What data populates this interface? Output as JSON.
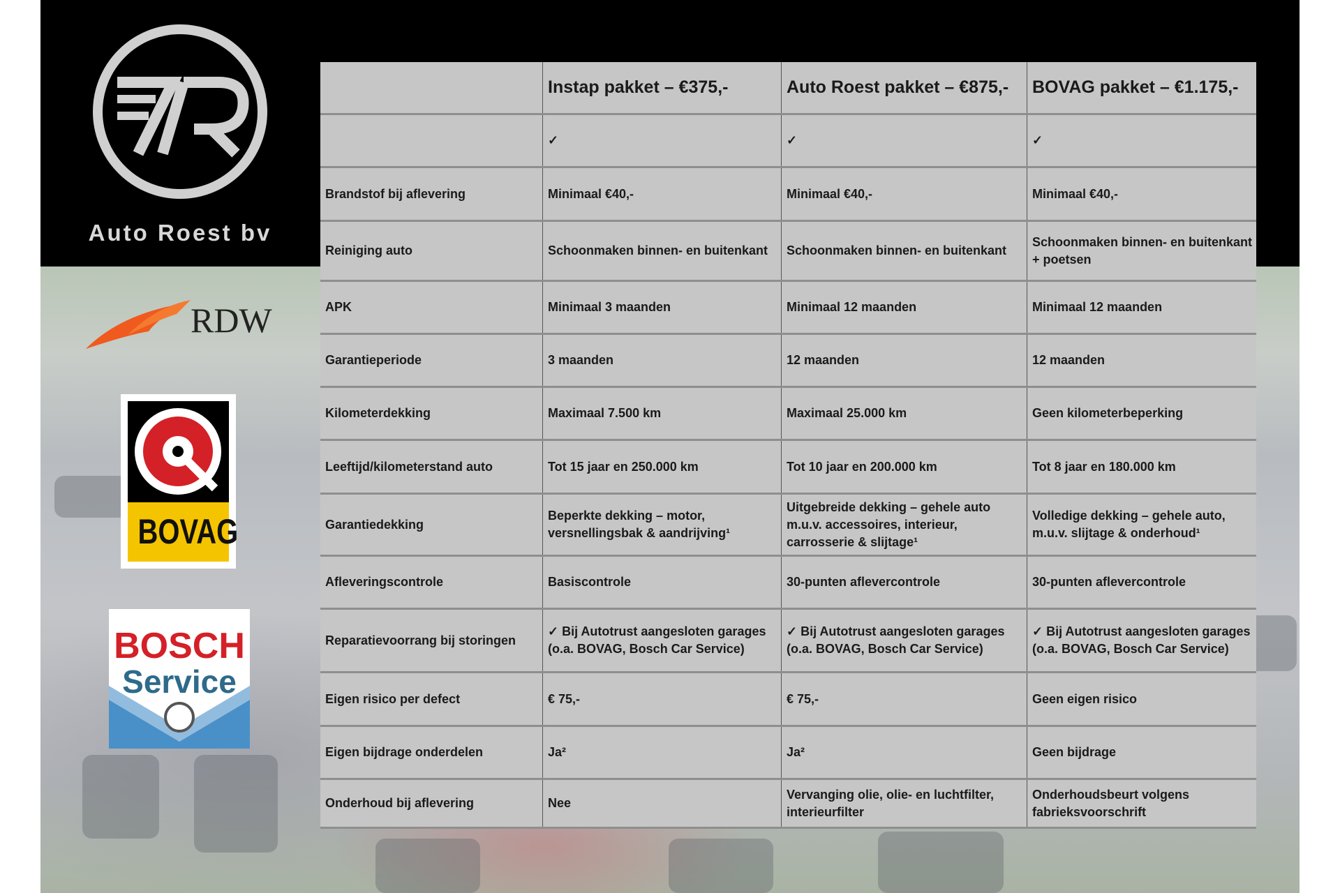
{
  "brand": {
    "name": "Auto Roest bv",
    "logo_text": "7R"
  },
  "partners": {
    "rdw": "RDW",
    "bovag": "BOVAG",
    "bosch_line1": "BOSCH",
    "bosch_line2": "Service"
  },
  "colors": {
    "table_bg": "#c6c6c6",
    "header_band": "#000000",
    "rdw_orange": "#f05a1e",
    "bovag_yellow": "#f5c400",
    "bosch_red": "#d42027",
    "bosch_blue": "#4a90c8"
  },
  "table": {
    "headers": [
      "",
      "Instap pakket – €375,-",
      "Auto Roest pakket – €875,-",
      "BOVAG pakket – €1.175,-"
    ],
    "rows": [
      [
        "",
        "✓",
        "✓",
        "✓"
      ],
      [
        "Brandstof bij aflevering",
        "Minimaal €40,-",
        "Minimaal €40,-",
        "Minimaal €40,-"
      ],
      [
        "Reiniging auto",
        "Schoonmaken binnen- en buitenkant",
        "Schoonmaken binnen- en buitenkant",
        "Schoonmaken binnen- en buitenkant + poetsen"
      ],
      [
        "APK",
        "Minimaal 3 maanden",
        "Minimaal 12 maanden",
        "Minimaal 12 maanden"
      ],
      [
        "Garantieperiode",
        "3 maanden",
        "12 maanden",
        "12 maanden"
      ],
      [
        "Kilometerdekking",
        "Maximaal 7.500 km",
        "Maximaal 25.000 km",
        "Geen kilometerbeperking"
      ],
      [
        "Leeftijd/kilometerstand auto",
        "Tot 15 jaar en 250.000 km",
        "Tot 10 jaar en 200.000 km",
        "Tot 8 jaar en 180.000 km"
      ],
      [
        "Garantiedekking",
        "Beperkte dekking – motor, versnellingsbak & aandrijving¹",
        "Uitgebreide dekking – gehele auto m.u.v. accessoires, interieur, carrosserie & slijtage¹",
        "Volledige dekking – gehele auto, m.u.v. slijtage & onderhoud¹"
      ],
      [
        "Afleveringscontrole",
        "Basiscontrole",
        "30-punten aflevercontrole",
        "30-punten aflevercontrole"
      ],
      [
        "Reparatievoorrang bij storingen",
        "✓ Bij Autotrust aangesloten garages (o.a. BOVAG, Bosch Car Service)",
        "✓ Bij Autotrust aangesloten garages (o.a. BOVAG, Bosch Car Service)",
        "✓ Bij Autotrust aangesloten garages (o.a. BOVAG, Bosch Car Service)"
      ],
      [
        "Eigen risico per defect",
        "€ 75,-",
        "€ 75,-",
        "Geen eigen risico"
      ],
      [
        "Eigen bijdrage onderdelen",
        "Ja²",
        "Ja²",
        "Geen bijdrage"
      ],
      [
        "Onderhoud bij aflevering",
        "Nee",
        "Vervanging olie, olie- en luchtfilter, interieurfilter",
        "Onderhoudsbeurt volgens fabrieksvoorschrift"
      ]
    ]
  }
}
